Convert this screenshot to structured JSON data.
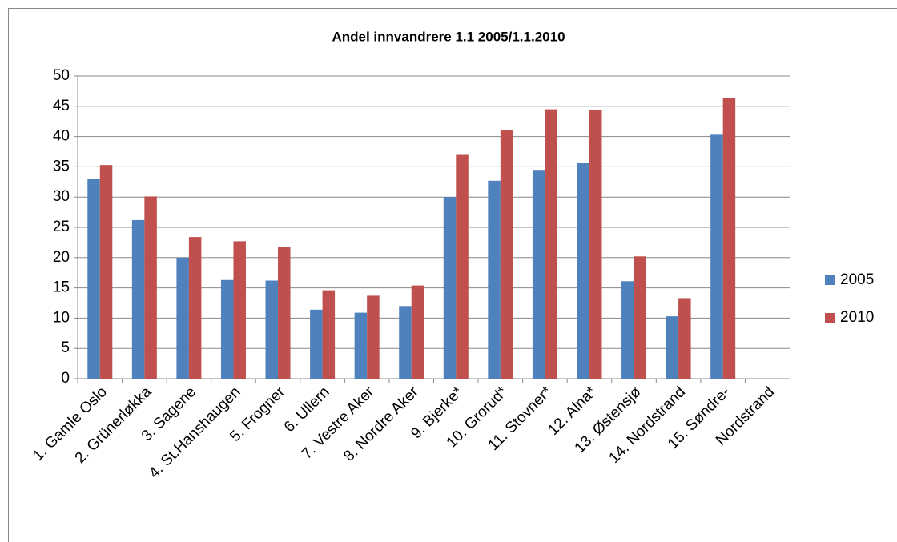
{
  "chart_data": {
    "type": "bar",
    "title": "Andel innvandrere 1.1 2005/1.1.2010",
    "categories": [
      "1. Gamle Oslo",
      "2. Grünerløkka",
      "3. Sagene",
      "4. St.Hanshaugen",
      "5. Frogner",
      "6. Ullern",
      "7. Vestre Aker",
      "8. Nordre Aker",
      "9. Bjerke*",
      "10. Grorud*",
      "11. Stovner*",
      "12. Alna*",
      "13. Østensjø",
      "14. Nordstrand",
      "15. Søndre-",
      "Nordstrand"
    ],
    "series": [
      {
        "name": "2005",
        "color": "#4f81bd",
        "values": [
          33,
          26.2,
          20,
          16.3,
          16.2,
          11.4,
          10.9,
          12,
          30,
          32.7,
          34.5,
          35.7,
          16.1,
          10.3,
          40.3,
          null
        ]
      },
      {
        "name": "2010",
        "color": "#c0504d",
        "values": [
          35.3,
          30.1,
          23.4,
          22.7,
          21.7,
          14.6,
          13.7,
          15.4,
          37.1,
          41,
          44.5,
          44.4,
          20.2,
          13.3,
          46.3,
          null
        ]
      }
    ],
    "ylim": [
      0,
      50
    ],
    "yticks": [
      0,
      5,
      10,
      15,
      20,
      25,
      30,
      35,
      40,
      45,
      50
    ],
    "grid": true,
    "legend": "right"
  }
}
